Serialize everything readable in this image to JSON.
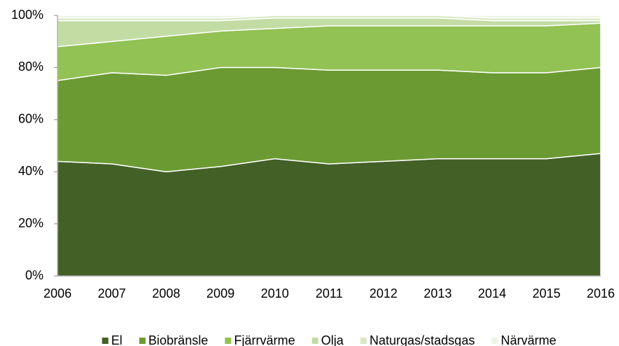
{
  "chart_data": {
    "type": "stacked_area",
    "categories": [
      "2006",
      "2007",
      "2008",
      "2009",
      "2010",
      "2011",
      "2012",
      "2013",
      "2014",
      "2015",
      "2016"
    ],
    "series": [
      {
        "name": "El",
        "color": "#436027",
        "values": [
          44,
          43,
          40,
          42,
          45,
          43,
          44,
          45,
          45,
          45,
          47
        ]
      },
      {
        "name": "Biobränsle",
        "color": "#6b9a33",
        "values": [
          31,
          35,
          37,
          38,
          35,
          36,
          35,
          34,
          33,
          33,
          33
        ]
      },
      {
        "name": "Fjärrvärme",
        "color": "#92c154",
        "values": [
          13,
          12,
          15,
          14,
          15,
          17,
          17,
          17,
          18,
          18,
          17
        ]
      },
      {
        "name": "Olja",
        "color": "#c3dca4",
        "values": [
          10,
          8,
          6,
          4,
          4,
          3,
          3,
          3,
          2,
          2,
          1
        ]
      },
      {
        "name": "Naturgas/stadsgas",
        "color": "#d8e8c4",
        "values": [
          1,
          1,
          1,
          1,
          1,
          1,
          1,
          1,
          1,
          1,
          1
        ]
      },
      {
        "name": "Närvärme",
        "color": "#eef5e4",
        "values": [
          1,
          1,
          1,
          1,
          0,
          0,
          0,
          0,
          1,
          1,
          1
        ]
      }
    ],
    "ylim": [
      0,
      100
    ],
    "yticks": [
      {
        "value": 0,
        "label": "0%"
      },
      {
        "value": 20,
        "label": "20%"
      },
      {
        "value": 40,
        "label": "40%"
      },
      {
        "value": 60,
        "label": "60%"
      },
      {
        "value": 80,
        "label": "80%"
      },
      {
        "value": 100,
        "label": "100%"
      }
    ],
    "legend": "bottom"
  }
}
